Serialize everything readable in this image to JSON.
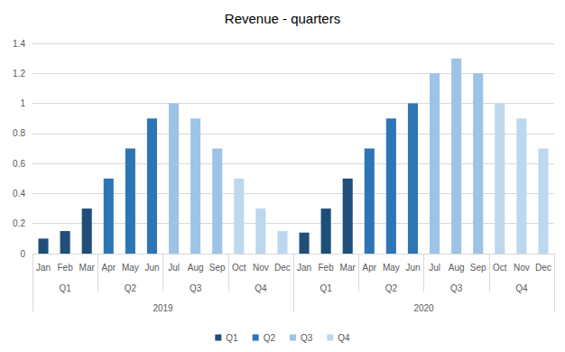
{
  "chart_data": {
    "type": "bar",
    "title": "Revenue - quarters",
    "categories": [
      "Jan",
      "Feb",
      "Mar",
      "Apr",
      "May",
      "Jun",
      "Jul",
      "Aug",
      "Sep",
      "Oct",
      "Nov",
      "Dec",
      "Jan",
      "Feb",
      "Mar",
      "Apr",
      "May",
      "Jun",
      "Jul",
      "Aug",
      "Sep",
      "Oct",
      "Nov",
      "Dec"
    ],
    "category_groups": [
      [
        "Q1",
        "Q2",
        "Q3",
        "Q4",
        "Q1",
        "Q2",
        "Q3",
        "Q4"
      ],
      [
        "2019",
        "2020"
      ]
    ],
    "series": [
      {
        "name": "Q1",
        "color": "#1f4e79",
        "values": [
          0.1,
          0.15,
          0.3,
          null,
          null,
          null,
          null,
          null,
          null,
          null,
          null,
          null,
          0.14,
          0.3,
          0.5,
          null,
          null,
          null,
          null,
          null,
          null,
          null,
          null,
          null
        ]
      },
      {
        "name": "Q2",
        "color": "#2e75b6",
        "values": [
          null,
          null,
          null,
          0.5,
          0.7,
          0.9,
          null,
          null,
          null,
          null,
          null,
          null,
          null,
          null,
          null,
          0.7,
          0.9,
          1,
          null,
          null,
          null,
          null,
          null,
          null
        ]
      },
      {
        "name": "Q3",
        "color": "#9dc3e6",
        "values": [
          null,
          null,
          null,
          null,
          null,
          null,
          1,
          0.9,
          0.7,
          null,
          null,
          null,
          null,
          null,
          null,
          null,
          null,
          null,
          1.2,
          1.3,
          1.2,
          null,
          null,
          null
        ]
      },
      {
        "name": "Q4",
        "color": "#bdd7ee",
        "values": [
          null,
          null,
          null,
          null,
          null,
          null,
          null,
          null,
          null,
          0.5,
          0.3,
          0.15,
          null,
          null,
          null,
          null,
          null,
          null,
          null,
          null,
          null,
          1,
          0.9,
          0.7
        ]
      }
    ],
    "ylim": [
      0,
      1.4
    ],
    "yticks": [
      0,
      0.2,
      0.4,
      0.6,
      0.8,
      1,
      1.2,
      1.4
    ],
    "grid": true,
    "legend": "bottom"
  }
}
